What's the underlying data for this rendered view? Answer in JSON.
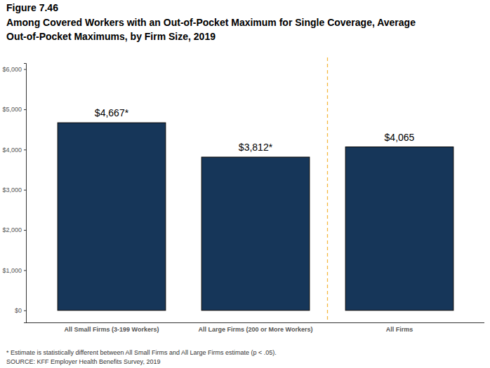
{
  "chart_data": {
    "type": "bar",
    "title": "Figure 7.46",
    "subtitle": [
      "Among Covered Workers with an Out-of-Pocket Maximum for Single Coverage, Average",
      "Out-of-Pocket Maximums, by Firm Size, 2019"
    ],
    "categories": [
      "All Small Firms (3-199 Workers)",
      "All Large Firms (200 or More Workers)",
      "All Firms"
    ],
    "values": [
      4667,
      3812,
      4065
    ],
    "value_labels": [
      "$4,667*",
      "$3,812*",
      "$4,065"
    ],
    "data_labels": true,
    "color": "#163659",
    "grid": false,
    "ylim": [
      -300,
      6150
    ],
    "yticks": [
      {
        "value": 0,
        "label": "$0"
      },
      {
        "value": 1000,
        "label": "$1,000"
      },
      {
        "value": 2000,
        "label": "$2,000"
      },
      {
        "value": 3000,
        "label": "$3,000"
      },
      {
        "value": 4000,
        "label": "$4,000"
      },
      {
        "value": 5000,
        "label": "$5,000"
      },
      {
        "value": 6000,
        "label": "$6,000"
      }
    ],
    "annotations": [
      "* Estimate is statistically different between All Small Firms and All Large Firms estimate (p < .05).",
      "SOURCE: KFF Employer Health Benefits Survey, 2019"
    ]
  }
}
